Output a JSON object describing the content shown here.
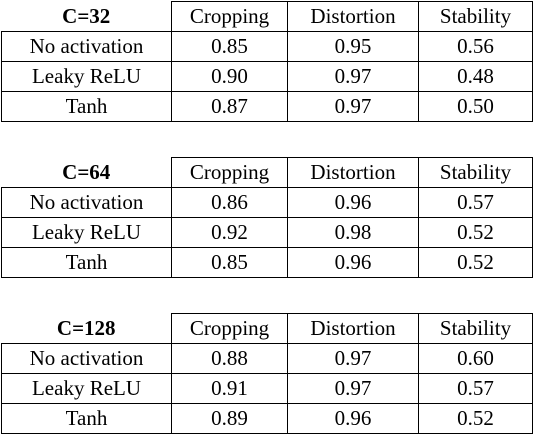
{
  "columns": [
    "Cropping",
    "Distortion",
    "Stability"
  ],
  "tables": [
    {
      "config": "C=32",
      "rows": [
        {
          "label": "No activation",
          "values": [
            "0.85",
            "0.95",
            "0.56"
          ]
        },
        {
          "label": "Leaky ReLU",
          "values": [
            "0.90",
            "0.97",
            "0.48"
          ]
        },
        {
          "label": "Tanh",
          "values": [
            "0.87",
            "0.97",
            "0.50"
          ]
        }
      ]
    },
    {
      "config": "C=64",
      "rows": [
        {
          "label": "No activation",
          "values": [
            "0.86",
            "0.96",
            "0.57"
          ]
        },
        {
          "label": "Leaky ReLU",
          "values": [
            "0.92",
            "0.98",
            "0.52"
          ]
        },
        {
          "label": "Tanh",
          "values": [
            "0.85",
            "0.96",
            "0.52"
          ]
        }
      ]
    },
    {
      "config": "C=128",
      "rows": [
        {
          "label": "No activation",
          "values": [
            "0.88",
            "0.97",
            "0.60"
          ]
        },
        {
          "label": "Leaky ReLU",
          "values": [
            "0.91",
            "0.97",
            "0.57"
          ]
        },
        {
          "label": "Tanh",
          "values": [
            "0.89",
            "0.96",
            "0.52"
          ]
        }
      ]
    }
  ]
}
